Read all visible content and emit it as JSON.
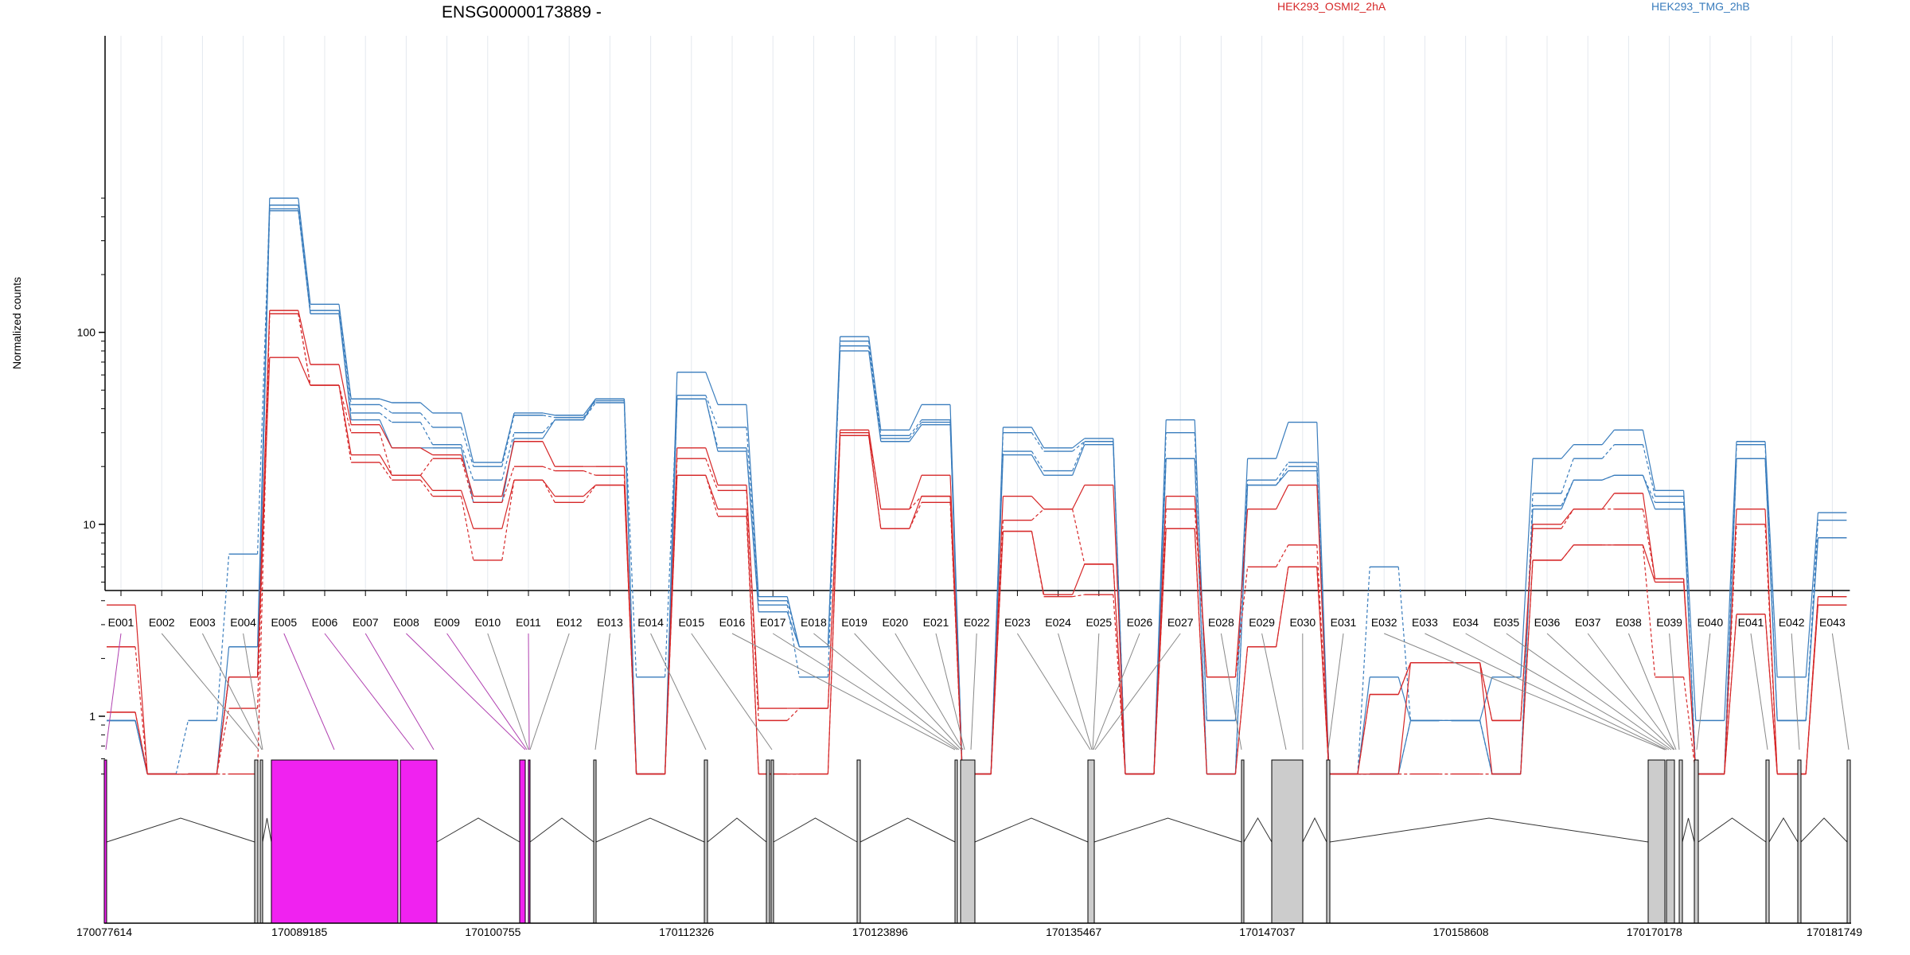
{
  "chart_data": {
    "type": "line",
    "title": "ENSG00000173889 -",
    "ylabel": "Normalized counts",
    "y_scale": "log",
    "ylim": [
      0.5,
      600
    ],
    "y_ticks": [
      1,
      10,
      100
    ],
    "y_tick_labels": [
      "1",
      "10",
      "100"
    ],
    "grid": "vertical lines at each exon",
    "legend": [
      {
        "name": "HEK293_OSMI2_2hA",
        "color": "#d62728",
        "placement": "top-center-right"
      },
      {
        "name": "HEK293_TMG_2hB",
        "color": "#3a7dbd",
        "placement": "top-right"
      }
    ],
    "categories": [
      "E001",
      "E002",
      "E003",
      "E004",
      "E005",
      "E006",
      "E007",
      "E008",
      "E009",
      "E010",
      "E011",
      "E012",
      "E013",
      "E014",
      "E015",
      "E016",
      "E017",
      "E018",
      "E019",
      "E020",
      "E021",
      "E022",
      "E023",
      "E024",
      "E025",
      "E026",
      "E027",
      "E028",
      "E029",
      "E030",
      "E031",
      "E032",
      "E033",
      "E034",
      "E035",
      "E036",
      "E037",
      "E038",
      "E039",
      "E040",
      "E041",
      "E042",
      "E043"
    ],
    "series": [
      {
        "group": "HEK293_TMG_2hB",
        "color": "#3a7dbd",
        "dash": false,
        "values": [
          0.95,
          0.5,
          0.5,
          2.3,
          500,
          140,
          45,
          43,
          38,
          21,
          38,
          37,
          45,
          0.5,
          62,
          42,
          4.2,
          2.3,
          95,
          31,
          42,
          0.5,
          32,
          25,
          28,
          0.5,
          35,
          0.95,
          22,
          34,
          0.5,
          1.6,
          0.95,
          0.95,
          1.6,
          22,
          26,
          31,
          15,
          0.95,
          27,
          1.6,
          11.5
        ]
      },
      {
        "group": "HEK293_TMG_2hB",
        "color": "#3a7dbd",
        "dash": true,
        "values": [
          0.95,
          0.5,
          0.95,
          7,
          460,
          130,
          42,
          38,
          32,
          20,
          37,
          36,
          44,
          1.6,
          47,
          32,
          4,
          2.3,
          90,
          29,
          35,
          0.5,
          30,
          24,
          27,
          0.5,
          30,
          0.95,
          17,
          21,
          0.5,
          6,
          0.95,
          0.95,
          0.5,
          14.5,
          22,
          26,
          14,
          0.5,
          26,
          0.95,
          10.5
        ]
      },
      {
        "group": "HEK293_TMG_2hB",
        "color": "#3a7dbd",
        "dash": true,
        "values": [
          0.95,
          0.5,
          0.5,
          1.6,
          430,
          125,
          38,
          34,
          26,
          17,
          30,
          35,
          43,
          0.5,
          45,
          25,
          3.8,
          1.6,
          85,
          28,
          34,
          0.5,
          24,
          19,
          27,
          0.5,
          22,
          0.5,
          16,
          20,
          0.5,
          0.5,
          0.95,
          0.95,
          0.5,
          12.5,
          17,
          18,
          13,
          0.5,
          22,
          0.95,
          8.5
        ]
      },
      {
        "group": "HEK293_TMG_2hB",
        "color": "#3a7dbd",
        "dash": false,
        "values": [
          0.95,
          0.5,
          0.5,
          1.6,
          440,
          125,
          35,
          25,
          25,
          13,
          28,
          35,
          45,
          0.5,
          45,
          24,
          3.5,
          2.3,
          80,
          27,
          33,
          0.5,
          23,
          18,
          26,
          0.5,
          22,
          0.5,
          16,
          19,
          0.5,
          0.5,
          0.95,
          0.95,
          0.5,
          12,
          17,
          18,
          12,
          0.5,
          22,
          0.95,
          8.5
        ]
      },
      {
        "group": "HEK293_OSMI2_2hA",
        "color": "#d62728",
        "dash": false,
        "values": [
          3.8,
          0.5,
          0.5,
          1.6,
          130,
          68,
          33,
          25,
          23,
          14,
          27,
          20,
          20,
          0.5,
          25,
          16,
          1.1,
          1.1,
          31,
          12,
          18,
          0.5,
          14,
          12,
          16,
          0.5,
          14,
          1.6,
          12,
          16,
          0.5,
          1.3,
          1.9,
          1.9,
          0.95,
          10,
          12,
          14.5,
          5.2,
          0.5,
          12,
          0.5,
          4.2
        ]
      },
      {
        "group": "HEK293_OSMI2_2hA",
        "color": "#d62728",
        "dash": true,
        "values": [
          2.3,
          0.5,
          0.5,
          1.1,
          125,
          53,
          30,
          18,
          22,
          13,
          20,
          19,
          18,
          0.5,
          22,
          15,
          0.95,
          1.1,
          30,
          12,
          14,
          0.5,
          10.5,
          12,
          6.2,
          0.5,
          12,
          1.6,
          6,
          7.8,
          0.5,
          1.3,
          1.9,
          1.9,
          0.95,
          9.5,
          12,
          12,
          5.2,
          0.5,
          10,
          0.5,
          4.2
        ]
      },
      {
        "group": "HEK293_OSMI2_2hA",
        "color": "#d62728",
        "dash": false,
        "values": [
          1.05,
          0.5,
          0.5,
          1.6,
          74,
          53,
          23,
          18,
          15,
          9.5,
          17,
          14,
          16,
          0.5,
          18,
          12,
          0.5,
          0.5,
          29,
          9.5,
          14,
          0.5,
          9.2,
          4.3,
          6.2,
          0.5,
          9.5,
          0.5,
          2.3,
          6,
          0.5,
          0.5,
          1.9,
          1.9,
          0.5,
          6.5,
          7.8,
          7.8,
          5,
          0.5,
          3.4,
          0.5,
          3.8
        ]
      },
      {
        "group": "HEK293_OSMI2_2hA",
        "color": "#d62728",
        "dash": true,
        "values": [
          1.05,
          0.5,
          0.5,
          0.5,
          125,
          53,
          21,
          17,
          14,
          6.5,
          17,
          13,
          16,
          0.5,
          18,
          11,
          0.5,
          0.5,
          29,
          9.5,
          13,
          0.5,
          9.2,
          4.2,
          4.3,
          0.5,
          9.5,
          0.5,
          2.3,
          6,
          0.5,
          0.5,
          0.5,
          0.5,
          0.5,
          6.5,
          7.8,
          7.8,
          1.6,
          0.5,
          3.4,
          0.5,
          3.8
        ]
      }
    ],
    "gene_model": {
      "coordinate_labels": [
        "170077614",
        "170089185",
        "170100755",
        "170112326",
        "170123896",
        "170135467",
        "170147037",
        "170158608",
        "170170178",
        "170181749"
      ],
      "highlight_color": "#f022f0",
      "exon_color": "#cccccc"
    }
  }
}
